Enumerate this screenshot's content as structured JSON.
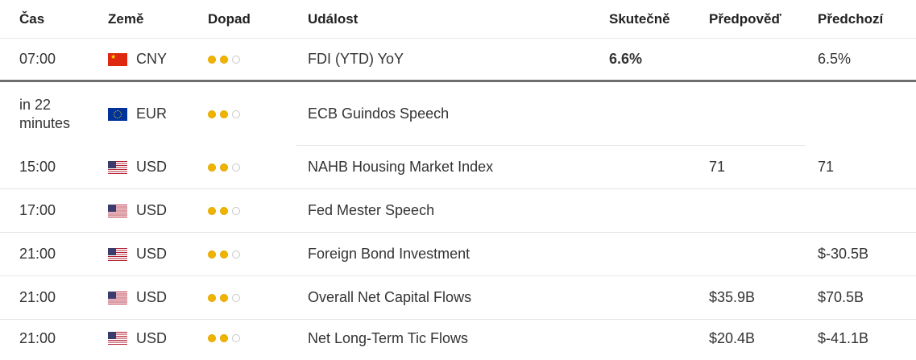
{
  "columns": {
    "time": "Čas",
    "country": "Země",
    "impact": "Dopad",
    "event": "Událost",
    "actual": "Skutečně",
    "forecast": "Předpověď",
    "previous": "Předchozí"
  },
  "colors": {
    "impact_on": "#f0b400",
    "impact_off": "#ffffff",
    "divider": "#6f6f6f"
  },
  "rows": [
    {
      "time": "07:00",
      "flag": "china-flag-icon",
      "country": "CNY",
      "impact": 2,
      "event": "FDI (YTD) YoY",
      "actual": "6.6%",
      "forecast": "",
      "previous": "6.5%"
    },
    {
      "time": "in 22 minutes",
      "flag": "eu-flag-icon",
      "country": "EUR",
      "impact": 2,
      "event": "ECB Guindos Speech",
      "actual": "",
      "forecast": "",
      "previous": ""
    },
    {
      "time": "15:00",
      "flag": "us-flag-icon",
      "country": "USD",
      "impact": 2,
      "event": "NAHB Housing Market Index",
      "actual": "",
      "forecast": "71",
      "previous": "71"
    },
    {
      "time": "17:00",
      "flag": "us-flag-icon",
      "country": "USD",
      "impact": 2,
      "event": "Fed Mester Speech",
      "actual": "",
      "forecast": "",
      "previous": ""
    },
    {
      "time": "21:00",
      "flag": "us-flag-icon",
      "country": "USD",
      "impact": 2,
      "event": "Foreign Bond Investment",
      "actual": "",
      "forecast": "",
      "previous": "$-30.5B"
    },
    {
      "time": "21:00",
      "flag": "us-flag-icon",
      "country": "USD",
      "impact": 2,
      "event": "Overall Net Capital Flows",
      "actual": "",
      "forecast": "$35.9B",
      "previous": "$70.5B"
    },
    {
      "time": "21:00",
      "flag": "us-flag-icon",
      "country": "USD",
      "impact": 2,
      "event": "Net Long-Term Tic Flows",
      "actual": "",
      "forecast": "$20.4B",
      "previous": "$-41.1B"
    }
  ]
}
